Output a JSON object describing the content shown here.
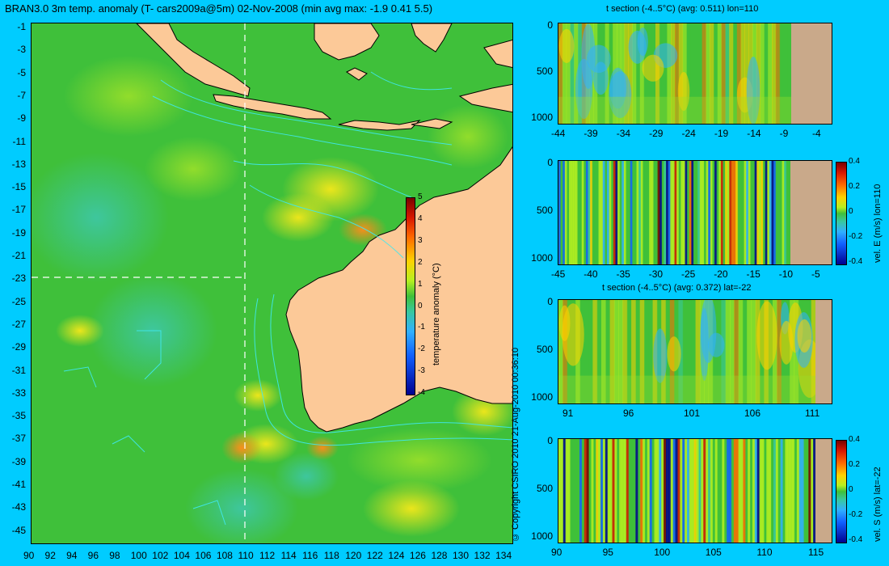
{
  "map": {
    "title": "BRAN3.0 3m temp. anomaly (T- cars2009a@5m) 02-Nov-2008 (min avg max: -1.9 0.41 5.5)",
    "lat_ticks": [
      "-1",
      "-3",
      "-5",
      "-7",
      "-9",
      "-11",
      "-13",
      "-15",
      "-17",
      "-19",
      "-21",
      "-23",
      "-25",
      "-27",
      "-29",
      "-31",
      "-33",
      "-35",
      "-37",
      "-39",
      "-41",
      "-43",
      "-45"
    ],
    "lon_ticks": [
      "90",
      "92",
      "94",
      "96",
      "98",
      "100",
      "102",
      "104",
      "106",
      "108",
      "110",
      "112",
      "114",
      "116",
      "118",
      "120",
      "122",
      "124",
      "126",
      "128",
      "130",
      "132",
      "134"
    ],
    "colorbar": {
      "label": "temperature anomaly (°C)",
      "ticks": [
        "5",
        "4",
        "3",
        "2",
        "1",
        "0",
        "-1",
        "-2",
        "-3",
        "-4"
      ]
    },
    "copyright": "© Copyright CSIRO 2010   21-Aug-2010 00:36:10",
    "colors": {
      "land": "#fcc998",
      "ocean": "#3fc03a",
      "contour": "#3fe8f0",
      "crosshair": "#ffffff"
    }
  },
  "panels": [
    {
      "title": "t section (-4..5°C) (avg: 0.511) lon=110",
      "y_ticks": [
        "0",
        "500",
        "1000"
      ],
      "x_ticks": [
        "-44",
        "-39",
        "-34",
        "-29",
        "-24",
        "-19",
        "-14",
        "-9",
        "-4"
      ]
    },
    {
      "title": "",
      "y_ticks": [
        "0",
        "500",
        "1000"
      ],
      "x_ticks": [
        "-45",
        "-40",
        "-35",
        "-30",
        "-25",
        "-20",
        "-15",
        "-10",
        "-5"
      ],
      "colorbar": {
        "label": "vel. E (m/s) lon=110",
        "ticks": [
          "0.4",
          "0.2",
          "0",
          "-0.2",
          "-0.4"
        ]
      }
    },
    {
      "title": "t section (-4..5°C) (avg: 0.372) lat=-22",
      "y_ticks": [
        "0",
        "500",
        "1000"
      ],
      "x_ticks": [
        "91",
        "96",
        "101",
        "106",
        "111"
      ]
    },
    {
      "title": "",
      "y_ticks": [
        "0",
        "500",
        "1000"
      ],
      "x_ticks": [
        "90",
        "95",
        "100",
        "105",
        "110",
        "115"
      ],
      "colorbar": {
        "label": "vel. S (m/s) lat=-22",
        "ticks": [
          "0.4",
          "0.2",
          "0",
          "-0.2",
          "-0.4"
        ]
      }
    }
  ]
}
